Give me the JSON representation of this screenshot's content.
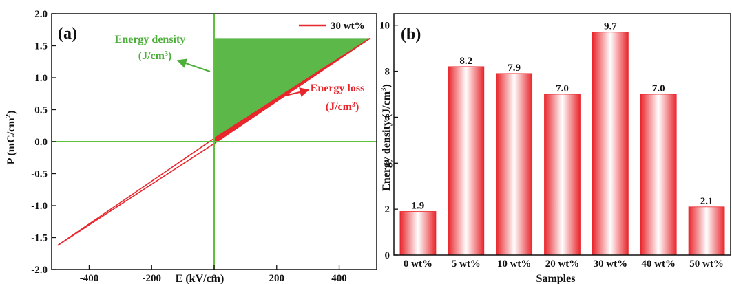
{
  "colors": {
    "loop": "#e8262c",
    "axis_lines": "#5fbf3e",
    "energy_density_fill": "#5cb848",
    "energy_density_text": "#4caf3a",
    "energy_loss_text": "#e8262c",
    "bar_edge": "#e8262c",
    "bar_center": "#ffffff",
    "frame": "#111111"
  },
  "chart_data": [
    {
      "type": "line",
      "panel_label": "(a)",
      "title": "",
      "xlabel": "E (kV/cm)",
      "ylabel_main": "P (mC/cm",
      "ylabel_sup": "2",
      "ylabel_end": ")",
      "xlim": [
        -520,
        520
      ],
      "ylim": [
        -2.0,
        2.0
      ],
      "xticks": [
        -400,
        -200,
        0,
        200,
        400
      ],
      "yticks": [
        "-2.0",
        "-1.5",
        "-1.0",
        "-0.5",
        "0.0",
        "0.5",
        "1.0",
        "1.5",
        "2.0"
      ],
      "legend": {
        "label": "30 wt%",
        "position": "top-right"
      },
      "series": [
        {
          "name": "30 wt%",
          "upper_branch": [
            [
              -500,
              -1.62
            ],
            [
              0,
              0.05
            ],
            [
              500,
              1.62
            ]
          ],
          "lower_branch": [
            [
              -500,
              -1.62
            ],
            [
              0,
              -0.03
            ],
            [
              500,
              1.62
            ]
          ]
        }
      ],
      "energy_density_region": {
        "y_max": 1.62,
        "x_max": 500
      },
      "annotations": {
        "energy_density_line1": "Energy density",
        "energy_density_line2": "(J/cm",
        "energy_density_sup": "3",
        "energy_density_end": ")",
        "energy_loss_line1": "Energy loss",
        "energy_loss_line2": "(J/cm",
        "energy_loss_sup": "3",
        "energy_loss_end": ")"
      }
    },
    {
      "type": "bar",
      "panel_label": "(b)",
      "title": "",
      "xlabel": "Samples",
      "ylabel_main": "Energy density (J/cm",
      "ylabel_sup": "3",
      "ylabel_end": ")",
      "ylim": [
        0,
        10.5
      ],
      "yticks": [
        "0",
        "2",
        "4",
        "6",
        "8",
        "10"
      ],
      "categories": [
        "0 wt%",
        "5 wt%",
        "10 wt%",
        "20 wt%",
        "30 wt%",
        "40 wt%",
        "50 wt%"
      ],
      "values": [
        1.9,
        8.2,
        7.9,
        7.0,
        9.7,
        7.0,
        2.1
      ],
      "value_labels": [
        "1.9",
        "8.2",
        "7.9",
        "7.0",
        "9.7",
        "7.0",
        "2.1"
      ]
    }
  ]
}
